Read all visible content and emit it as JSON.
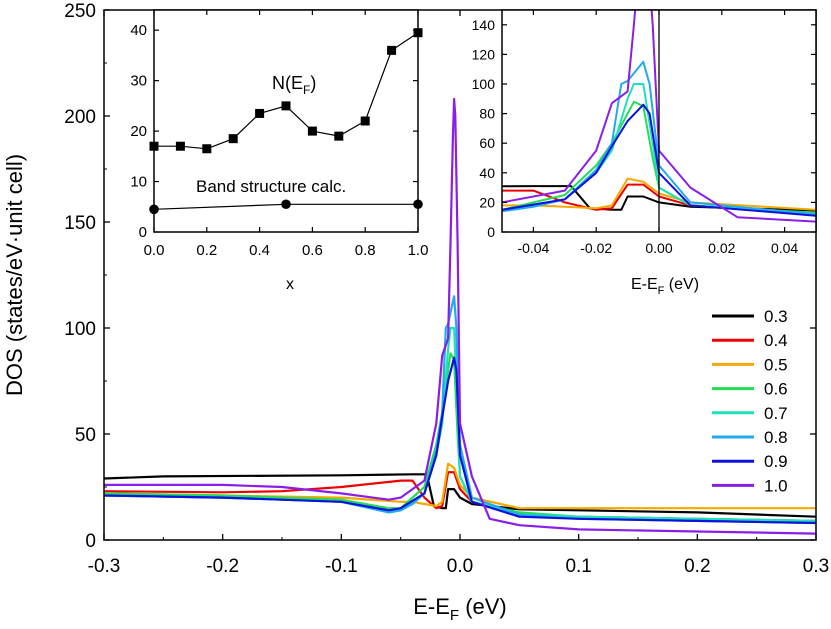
{
  "chart_data": [
    {
      "id": "main",
      "type": "line",
      "xlabel": "E-E",
      "xlabel_sub": "F",
      "xlabel_unit": " (eV)",
      "ylabel": "DOS (states/eV·unit cell)",
      "xlim": [
        -0.3,
        0.3
      ],
      "ylim": [
        0,
        250
      ],
      "xticks": [
        -0.3,
        -0.2,
        -0.1,
        0.0,
        0.1,
        0.2,
        0.3
      ],
      "xtick_labels": [
        "-0.3",
        "-0.2",
        "-0.1",
        "0.0",
        "0.1",
        "0.2",
        "0.3"
      ],
      "yticks": [
        0,
        50,
        100,
        150,
        200,
        250
      ],
      "ytick_labels": [
        "0",
        "50",
        "100",
        "150",
        "200",
        "250"
      ],
      "grid": false,
      "legend_position": "right",
      "series": [
        {
          "name": "0.3",
          "color": "#000000",
          "points": [
            [
              -0.3,
              29
            ],
            [
              -0.25,
              30
            ],
            [
              -0.1,
              30.5
            ],
            [
              -0.04,
              31
            ],
            [
              -0.028,
              31
            ],
            [
              -0.022,
              16
            ],
            [
              -0.015,
              15
            ],
            [
              -0.012,
              15
            ],
            [
              -0.01,
              24
            ],
            [
              -0.005,
              24
            ],
            [
              0.0,
              20
            ],
            [
              0.01,
              17
            ],
            [
              0.05,
              14.5
            ],
            [
              0.1,
              14
            ],
            [
              0.2,
              13
            ],
            [
              0.3,
              11
            ]
          ]
        },
        {
          "name": "0.4",
          "color": "#ee0000",
          "points": [
            [
              -0.3,
              23
            ],
            [
              -0.2,
              22.5
            ],
            [
              -0.15,
              23
            ],
            [
              -0.1,
              25
            ],
            [
              -0.05,
              28
            ],
            [
              -0.04,
              28
            ],
            [
              -0.03,
              20
            ],
            [
              -0.02,
              15
            ],
            [
              -0.015,
              16
            ],
            [
              -0.01,
              32
            ],
            [
              -0.005,
              32
            ],
            [
              0.0,
              24
            ],
            [
              0.01,
              18
            ],
            [
              0.05,
              12
            ],
            [
              0.1,
              11
            ],
            [
              0.2,
              10
            ],
            [
              0.3,
              9
            ]
          ]
        },
        {
          "name": "0.5",
          "color": "#f5a800",
          "points": [
            [
              -0.3,
              22
            ],
            [
              -0.2,
              21
            ],
            [
              -0.1,
              20
            ],
            [
              -0.05,
              18
            ],
            [
              -0.04,
              18
            ],
            [
              -0.03,
              17
            ],
            [
              -0.02,
              16
            ],
            [
              -0.015,
              18
            ],
            [
              -0.01,
              36
            ],
            [
              -0.005,
              34
            ],
            [
              0.0,
              26
            ],
            [
              0.01,
              20
            ],
            [
              0.05,
              15
            ],
            [
              0.1,
              15
            ],
            [
              0.2,
              15
            ],
            [
              0.3,
              15
            ]
          ]
        },
        {
          "name": "0.6",
          "color": "#22dd55",
          "points": [
            [
              -0.3,
              22
            ],
            [
              -0.2,
              21
            ],
            [
              -0.1,
              19
            ],
            [
              -0.06,
              15
            ],
            [
              -0.05,
              15
            ],
            [
              -0.03,
              25
            ],
            [
              -0.02,
              45
            ],
            [
              -0.015,
              60
            ],
            [
              -0.01,
              80
            ],
            [
              -0.008,
              88
            ],
            [
              -0.005,
              85
            ],
            [
              -0.002,
              50
            ],
            [
              0.0,
              30
            ],
            [
              0.01,
              18
            ],
            [
              0.05,
              13
            ],
            [
              0.1,
              11
            ],
            [
              0.2,
              10
            ],
            [
              0.3,
              9
            ]
          ]
        },
        {
          "name": "0.7",
          "color": "#20e0b8",
          "points": [
            [
              -0.3,
              21
            ],
            [
              -0.2,
              20
            ],
            [
              -0.1,
              18
            ],
            [
              -0.06,
              13
            ],
            [
              -0.05,
              14
            ],
            [
              -0.03,
              22
            ],
            [
              -0.02,
              40
            ],
            [
              -0.015,
              55
            ],
            [
              -0.01,
              90
            ],
            [
              -0.008,
              100
            ],
            [
              -0.005,
              100
            ],
            [
              -0.002,
              60
            ],
            [
              0.0,
              30
            ],
            [
              0.01,
              18
            ],
            [
              0.05,
              12
            ],
            [
              0.1,
              11
            ],
            [
              0.2,
              10
            ],
            [
              0.3,
              9
            ]
          ]
        },
        {
          "name": "0.8",
          "color": "#22aaee",
          "points": [
            [
              -0.3,
              21
            ],
            [
              -0.2,
              20
            ],
            [
              -0.1,
              18
            ],
            [
              -0.06,
              13
            ],
            [
              -0.05,
              14
            ],
            [
              -0.04,
              17
            ],
            [
              -0.03,
              22
            ],
            [
              -0.02,
              42
            ],
            [
              -0.015,
              60
            ],
            [
              -0.012,
              100
            ],
            [
              -0.01,
              102
            ],
            [
              -0.005,
              115
            ],
            [
              -0.003,
              100
            ],
            [
              0.0,
              45
            ],
            [
              0.01,
              20
            ],
            [
              0.05,
              12
            ],
            [
              0.1,
              10
            ],
            [
              0.2,
              9
            ],
            [
              0.3,
              8
            ]
          ]
        },
        {
          "name": "0.9",
          "color": "#1010dd",
          "points": [
            [
              -0.3,
              21
            ],
            [
              -0.2,
              20
            ],
            [
              -0.1,
              18
            ],
            [
              -0.06,
              14
            ],
            [
              -0.05,
              15
            ],
            [
              -0.03,
              22
            ],
            [
              -0.02,
              40
            ],
            [
              -0.015,
              58
            ],
            [
              -0.01,
              75
            ],
            [
              -0.005,
              86
            ],
            [
              -0.003,
              80
            ],
            [
              0.0,
              40
            ],
            [
              0.01,
              18
            ],
            [
              0.05,
              11
            ],
            [
              0.1,
              10
            ],
            [
              0.2,
              9
            ],
            [
              0.3,
              8
            ]
          ]
        },
        {
          "name": "1.0",
          "color": "#8a1ee8",
          "points": [
            [
              -0.3,
              26
            ],
            [
              -0.2,
              26
            ],
            [
              -0.15,
              25
            ],
            [
              -0.1,
              22
            ],
            [
              -0.06,
              19
            ],
            [
              -0.05,
              20
            ],
            [
              -0.03,
              28
            ],
            [
              -0.02,
              55
            ],
            [
              -0.015,
              87
            ],
            [
              -0.01,
              95
            ],
            [
              -0.008,
              140
            ],
            [
              -0.006,
              190
            ],
            [
              -0.005,
              208
            ],
            [
              -0.004,
              200
            ],
            [
              -0.002,
              140
            ],
            [
              0.0,
              55
            ],
            [
              0.01,
              30
            ],
            [
              0.025,
              10
            ],
            [
              0.05,
              7
            ],
            [
              0.1,
              5
            ],
            [
              0.2,
              4
            ],
            [
              0.3,
              3
            ]
          ]
        }
      ]
    },
    {
      "id": "inset_left",
      "type": "scatter",
      "xlabel": "x",
      "xlim": [
        0,
        1.0
      ],
      "ylim": [
        0,
        44
      ],
      "xticks": [
        0.0,
        0.2,
        0.4,
        0.6,
        0.8,
        1.0
      ],
      "xtick_labels": [
        "0.0",
        "0.2",
        "0.4",
        "0.6",
        "0.8",
        "1.0"
      ],
      "yticks": [
        0,
        10,
        20,
        30,
        40
      ],
      "ytick_labels": [
        "0",
        "10",
        "20",
        "30",
        "40"
      ],
      "annotation_nef": "N(E",
      "annotation_nef_sub": "F",
      "annotation_nef_close": ")",
      "annotation_band": "Band structure calc.",
      "series": [
        {
          "marker": "square",
          "x": [
            0.0,
            0.1,
            0.2,
            0.3,
            0.4,
            0.5,
            0.6,
            0.7,
            0.8,
            0.9,
            1.0
          ],
          "values": [
            17,
            17,
            16.5,
            18.5,
            23.5,
            25,
            20,
            19,
            22,
            36,
            39.5
          ]
        },
        {
          "marker": "circle",
          "x": [
            0.0,
            0.5,
            1.0
          ],
          "values": [
            4.5,
            5.5,
            5.5
          ]
        }
      ]
    },
    {
      "id": "inset_right",
      "type": "line",
      "xlabel": "E-E",
      "xlabel_sub": "F",
      "xlabel_unit": " (eV)",
      "xlim": [
        -0.05,
        0.05
      ],
      "ylim": [
        0,
        150
      ],
      "xticks": [
        -0.04,
        -0.02,
        0.0,
        0.02,
        0.04
      ],
      "xtick_labels": [
        "-0.04",
        "-0.02",
        "0.00",
        "0.02",
        "0.04"
      ],
      "yticks": [
        0,
        20,
        40,
        60,
        80,
        100,
        120,
        140
      ],
      "ytick_labels": [
        "0",
        "20",
        "40",
        "60",
        "80",
        "100",
        "120",
        "140"
      ],
      "vline": 0.0,
      "uses_series_of": "main"
    }
  ]
}
